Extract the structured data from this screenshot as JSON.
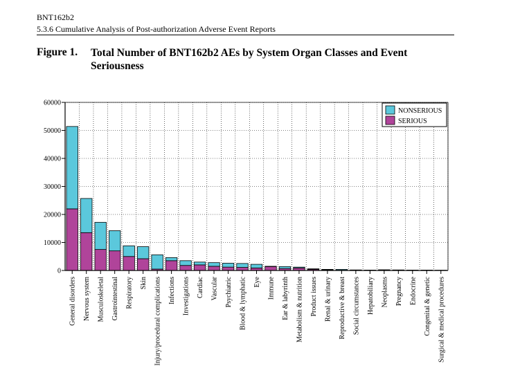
{
  "header": {
    "product": "BNT162b2",
    "section": "5.3.6 Cumulative Analysis of Post-authorization Adverse Event Reports"
  },
  "figure": {
    "number": "Figure 1.",
    "title": "Total Number of BNT162b2 AEs by System Organ Classes and Event Seriousness"
  },
  "colors": {
    "nonserious": "#5bc8dc",
    "serious": "#b0449a",
    "grid": "#000000"
  },
  "chart_data": {
    "type": "bar",
    "stacked": true,
    "title": "Total Number of BNT162b2 AEs by System Organ Classes and Event Seriousness",
    "xlabel": "",
    "ylabel": "",
    "ylim": [
      0,
      60000
    ],
    "yticks": [
      0,
      10000,
      20000,
      30000,
      40000,
      50000,
      60000
    ],
    "ytick_labels": [
      "0",
      "10000",
      "20000",
      "30000",
      "40000",
      "50000",
      "60000"
    ],
    "legend_position": "top-right",
    "grid": true,
    "categories": [
      "General disorders",
      "Nervous system",
      "Musculoskeletal",
      "Gastrointestinal",
      "Respiratory",
      "Skin",
      "Injury/procedural complications",
      "Infections",
      "Investigations",
      "Cardiac",
      "Vascular",
      "Psychiatric",
      "Blood & lymphatic",
      "Eye",
      "Immune",
      "Ear & labyrinth",
      "Metabolism & nutrition",
      "Product issues",
      "Renal & urinary",
      "Reproductive & breast",
      "Social circumstances",
      "Hepatobiliary",
      "Neoplasms",
      "Pregnancy",
      "Endocrine",
      "Congenital & genetic",
      "Surgical & medical procedures"
    ],
    "series": [
      {
        "name": "SERIOUS",
        "values": [
          22000,
          13500,
          7500,
          7000,
          5000,
          4200,
          500,
          3500,
          1800,
          2000,
          1500,
          1200,
          1100,
          900,
          1400,
          700,
          900,
          400,
          200,
          100,
          50,
          50,
          200,
          100,
          50,
          50,
          50
        ]
      },
      {
        "name": "NONSERIOUS",
        "values": [
          29400,
          12200,
          9700,
          7200,
          3800,
          4300,
          5100,
          1100,
          1700,
          1000,
          1300,
          1400,
          1400,
          1300,
          100,
          700,
          300,
          200,
          200,
          300,
          150,
          100,
          50,
          100,
          100,
          100,
          50
        ]
      }
    ]
  }
}
